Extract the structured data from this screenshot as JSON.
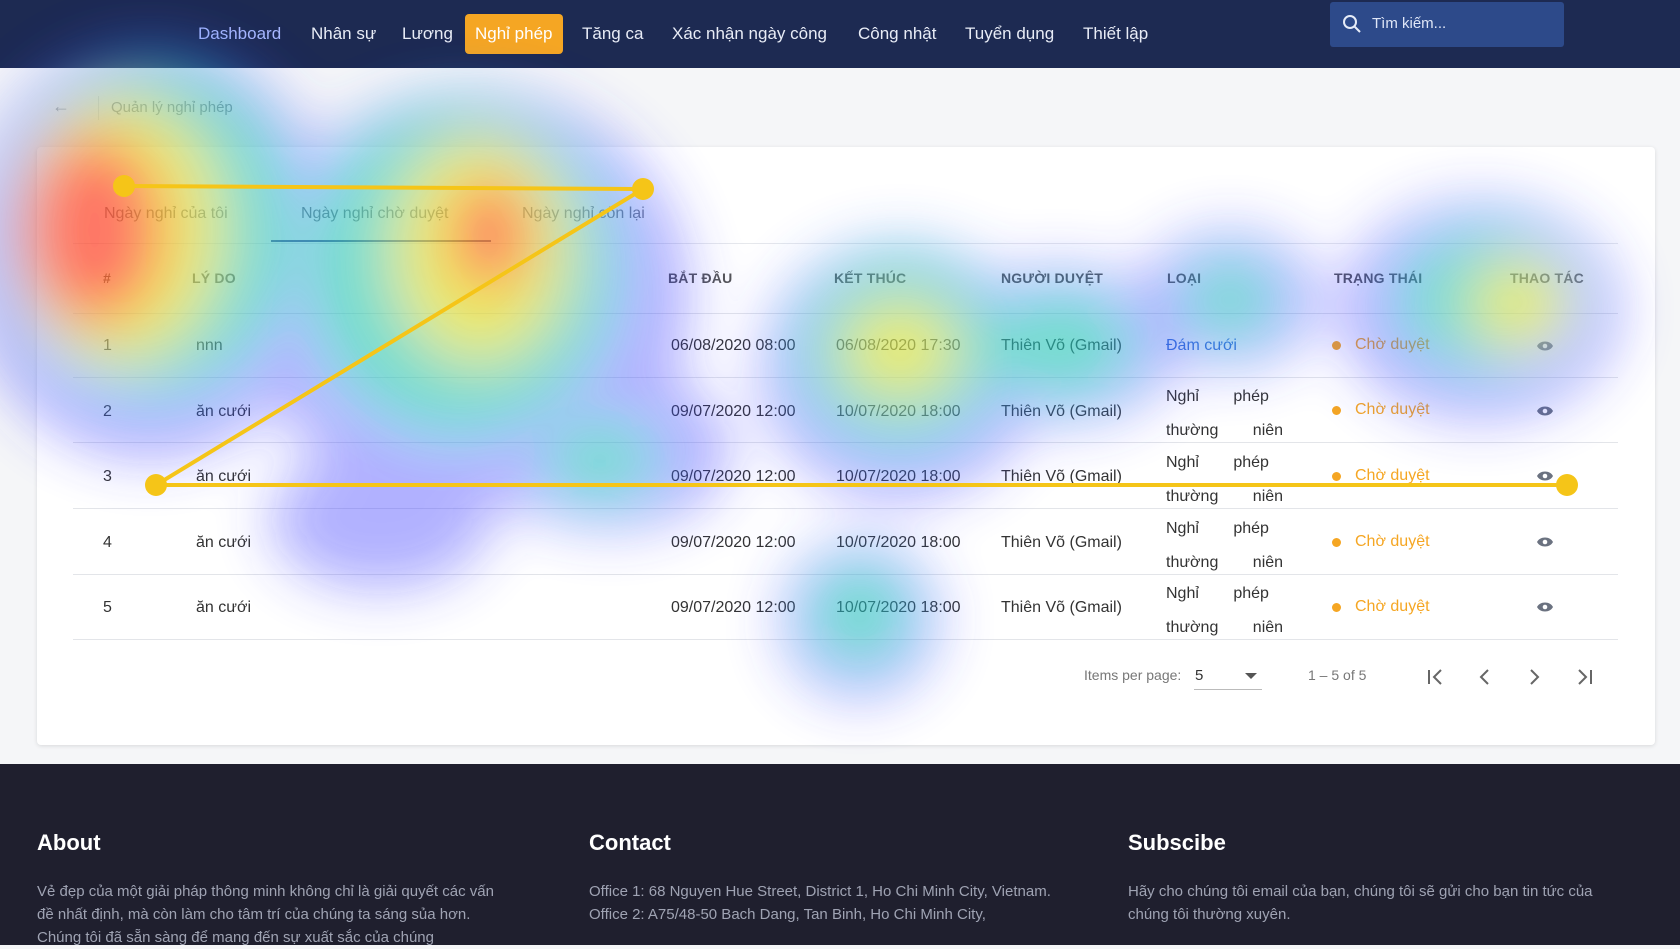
{
  "nav": {
    "items": [
      "Dashboard",
      "Nhân sự",
      "Lương",
      "Nghỉ phép",
      "Tăng ca",
      "Xác nhận ngày công",
      "Công nhật",
      "Tuyển dụng",
      "Thiết lập"
    ],
    "active_index": 3,
    "search_placeholder": "Tìm kiếm..."
  },
  "breadcrumb": {
    "back_icon": "arrow-left-icon",
    "title": "Quản lý nghỉ phép"
  },
  "tabs": [
    "Ngày nghỉ của tôi",
    "Ngày nghỉ chờ duyệt",
    "Ngày nghỉ còn lại"
  ],
  "active_tab": 1,
  "table": {
    "headers": [
      "#",
      "LÝ DO",
      "BẮT ĐẦU",
      "KẾT THÚC",
      "NGƯỜI DUYỆT",
      "LOẠI",
      "TRẠNG THÁI",
      "THAO TÁC"
    ],
    "rows": [
      {
        "num": "1",
        "reason": "nnn",
        "start": "06/08/2020 08:00",
        "end": "06/08/2020 17:30",
        "approver": "Thiên Võ (Gmail)",
        "type": "Đám cưới",
        "status": "Chờ duyệt"
      },
      {
        "num": "2",
        "reason": "ăn cưới",
        "start": "09/07/2020 12:00",
        "end": "10/07/2020 18:00",
        "approver": "Thiên Võ (Gmail)",
        "type": "Nghỉ phép thường niên",
        "status": "Chờ duyệt"
      },
      {
        "num": "3",
        "reason": "ăn cưới",
        "start": "09/07/2020 12:00",
        "end": "10/07/2020 18:00",
        "approver": "Thiên Võ (Gmail)",
        "type": "Nghỉ phép thường niên",
        "status": "Chờ duyệt"
      },
      {
        "num": "4",
        "reason": "ăn cưới",
        "start": "09/07/2020 12:00",
        "end": "10/07/2020 18:00",
        "approver": "Thiên Võ (Gmail)",
        "type": "Nghỉ phép thường niên",
        "status": "Chờ duyệt"
      },
      {
        "num": "5",
        "reason": "ăn cưới",
        "start": "09/07/2020 12:00",
        "end": "10/07/2020 18:00",
        "approver": "Thiên Võ (Gmail)",
        "type": "Nghỉ phép thường niên",
        "status": "Chờ duyệt"
      }
    ],
    "type_color_row1": "#3b6fd6",
    "status_color": "#f5a623"
  },
  "paginator": {
    "label": "Items per page:",
    "page_size": "5",
    "range": "1 – 5 of 5"
  },
  "footer": {
    "about_title": "About",
    "about_text": "Vẻ đẹp của một giải pháp thông minh không chỉ là giải quyết các vấn đề nhất định, mà còn làm cho tâm trí của chúng ta sáng sủa hơn. Chúng tôi đã sẵn sàng để mang đến sự xuất sắc của chúng",
    "contact_title": "Contact",
    "contact_text": "Office 1: 68 Nguyen Hue Street, District 1, Ho Chi Minh City, Vietnam. Office 2: A75/48-50 Bach Dang, Tan Binh, Ho Chi Minh City,",
    "subscribe_title": "Subscibe",
    "subscribe_text": "Hãy cho chúng tôi email của bạn, chúng tôi sẽ gửi cho bạn tin tức của chúng tôi thường xuyên."
  },
  "overlay": {
    "type": "eye-tracking heatmap with gaze path",
    "path_color": "#f5c518"
  }
}
